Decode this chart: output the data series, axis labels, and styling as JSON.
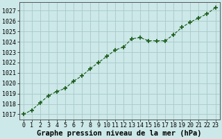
{
  "x": [
    0,
    1,
    2,
    3,
    4,
    5,
    6,
    7,
    8,
    9,
    10,
    11,
    12,
    13,
    14,
    15,
    16,
    17,
    18,
    19,
    20,
    21,
    22,
    23
  ],
  "y": [
    1017.0,
    1017.4,
    1018.1,
    1018.8,
    1019.2,
    1019.5,
    1020.2,
    1020.7,
    1021.4,
    1022.0,
    1022.6,
    1023.2,
    1023.5,
    1024.3,
    1024.4,
    1024.1,
    1024.1,
    1024.1,
    1024.7,
    1025.4,
    1025.9,
    1026.3,
    1026.7,
    1027.3
  ],
  "line_color": "#1a5c1a",
  "marker": "+",
  "marker_size": 4,
  "marker_lw": 1.2,
  "line_width": 0.8,
  "bg_color": "#cce8e8",
  "grid_color": "#aac8c8",
  "xlabel": "Graphe pression niveau de la mer (hPa)",
  "ylim": [
    1016.5,
    1027.8
  ],
  "xlim": [
    -0.5,
    23.5
  ],
  "yticks": [
    1017,
    1018,
    1019,
    1020,
    1021,
    1022,
    1023,
    1024,
    1025,
    1026,
    1027
  ],
  "xticks": [
    0,
    1,
    2,
    3,
    4,
    5,
    6,
    7,
    8,
    9,
    10,
    11,
    12,
    13,
    14,
    15,
    16,
    17,
    18,
    19,
    20,
    21,
    22,
    23
  ],
  "tick_fontsize": 6,
  "xlabel_fontsize": 7.5,
  "xlabel_bold": true,
  "spine_color": "#555555"
}
